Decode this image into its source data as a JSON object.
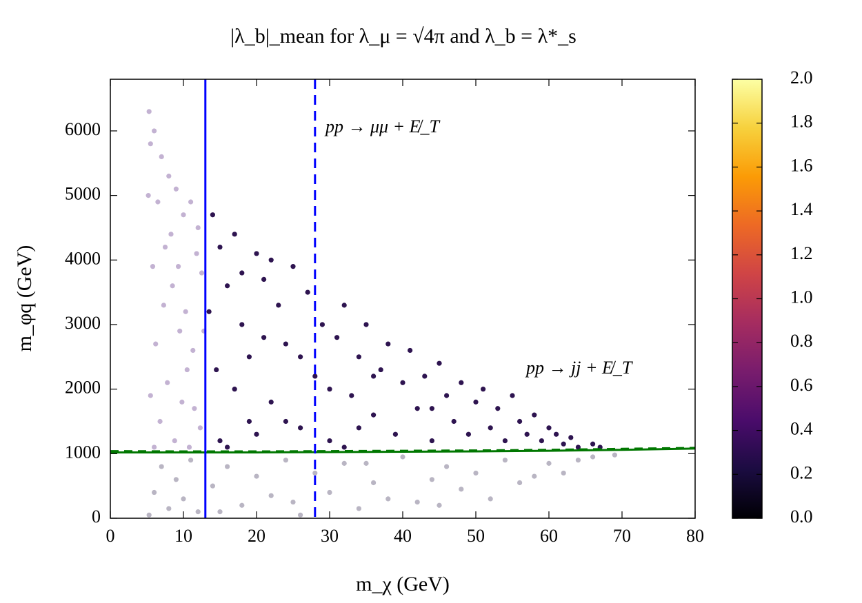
{
  "chart_data": {
    "type": "scatter",
    "title": "|λ_b|_mean for λ_μ = √4π and λ_b = λ*_s",
    "x_label": "m_χ (GeV)",
    "y_label": "m_φq (GeV)",
    "xlim": [
      0,
      80
    ],
    "xticks": [
      0,
      10,
      20,
      30,
      40,
      50,
      60,
      70,
      80
    ],
    "ylim": [
      0,
      6800
    ],
    "yticks": [
      0,
      1000,
      2000,
      3000,
      4000,
      5000,
      6000
    ],
    "colormap": "inferno",
    "clim": [
      0,
      2
    ],
    "cticks": [
      {
        "value": 0,
        "label": "0.0"
      },
      0.2,
      0.4,
      0.6,
      0.8,
      {
        "value": 1,
        "label": "1.0"
      },
      1.2,
      1.4,
      1.6,
      1.8,
      {
        "value": 2,
        "label": "2.0"
      }
    ],
    "series": [
      {
        "color": "#2e1450",
        "x": [
          14,
          15,
          16,
          17,
          18,
          19,
          20,
          21,
          22,
          23,
          24,
          25,
          26,
          27,
          28,
          29,
          30,
          31,
          32,
          33,
          34,
          35,
          36,
          37,
          38,
          39,
          40,
          41,
          42,
          43,
          44,
          45,
          46,
          47,
          48,
          49,
          50,
          51,
          52,
          53,
          54,
          55,
          56,
          57,
          58,
          59,
          60,
          61,
          62,
          63,
          64,
          66,
          67,
          15,
          17,
          19,
          21,
          13.5,
          14.5,
          16,
          18,
          20,
          22,
          24,
          26,
          30,
          34,
          36,
          44,
          32
        ],
        "values": [
          4700,
          4200,
          3600,
          4400,
          3000,
          2500,
          4100,
          3700,
          1800,
          3300,
          2700,
          3900,
          1400,
          3500,
          2200,
          3000,
          1200,
          2800,
          3300,
          1900,
          2500,
          3000,
          1600,
          2300,
          2700,
          1300,
          2100,
          2600,
          1700,
          2200,
          1200,
          2400,
          1900,
          1500,
          2100,
          1300,
          1800,
          2000,
          1400,
          1700,
          1200,
          1900,
          1500,
          1300,
          1600,
          1200,
          1400,
          1300,
          1150,
          1250,
          1100,
          1150,
          1100,
          1200,
          2000,
          1500,
          2800,
          3200,
          2300,
          1100,
          3800,
          1300,
          4000,
          1500,
          2500,
          2000,
          1400,
          2200,
          1700,
          1100
        ]
      },
      {
        "color": "#c3b2d2",
        "x": [
          5.3,
          5.5,
          6,
          6.5,
          7,
          7.5,
          8,
          8.5,
          9,
          9.5,
          10,
          10.5,
          11,
          11.5,
          12,
          12.5,
          5.2,
          5.8,
          6.2,
          6.8,
          7.3,
          7.8,
          8.3,
          8.8,
          9.3,
          9.8,
          10.3,
          10.8,
          11.3,
          11.8,
          12.3,
          12.8,
          5.5,
          6
        ],
        "values": [
          6300,
          5800,
          6000,
          4900,
          5600,
          4200,
          5300,
          3600,
          5100,
          2900,
          4700,
          2300,
          4900,
          1700,
          4500,
          3800,
          5000,
          3900,
          2700,
          1500,
          3300,
          2100,
          4400,
          1200,
          3900,
          1800,
          3200,
          1100,
          2600,
          4100,
          1400,
          2900,
          1900,
          1100
        ]
      },
      {
        "color": "#b9b5c3",
        "x": [
          5.3,
          6,
          7,
          8,
          9,
          10,
          11,
          12,
          14,
          16,
          18,
          20,
          22,
          24,
          26,
          28,
          30,
          32,
          34,
          36,
          38,
          40,
          42,
          44,
          46,
          48,
          50,
          52,
          54,
          56,
          58,
          60,
          62,
          64,
          66,
          69,
          15,
          25,
          35,
          45
        ],
        "values": [
          50,
          400,
          800,
          150,
          600,
          300,
          900,
          100,
          500,
          800,
          200,
          650,
          350,
          900,
          50,
          700,
          400,
          850,
          150,
          550,
          300,
          950,
          250,
          600,
          800,
          450,
          700,
          300,
          900,
          550,
          650,
          850,
          700,
          900,
          950,
          980,
          100,
          250,
          850,
          200
        ]
      }
    ],
    "vlines": [
      {
        "x": 13,
        "color": "#0000ff",
        "style": "solid"
      },
      {
        "x": 28,
        "color": "#0000ff",
        "style": "dashed"
      }
    ],
    "curves": [
      {
        "color": "#007700",
        "style": "solid",
        "x": [
          0,
          10,
          20,
          30,
          40,
          50,
          60,
          70,
          80
        ],
        "values": [
          1020,
          1020,
          1020,
          1025,
          1030,
          1035,
          1045,
          1060,
          1080
        ]
      },
      {
        "color": "#007700",
        "style": "dashed",
        "x": [
          0,
          10,
          20,
          30,
          40,
          50,
          60,
          70,
          80
        ],
        "values": [
          1040,
          1035,
          1035,
          1040,
          1045,
          1050,
          1060,
          1075,
          1090
        ]
      }
    ],
    "annotations": [
      {
        "text": "pp → μμ + E̸_T",
        "color": "#0000ff"
      },
      {
        "text": "pp → jj + E̸_T",
        "color": "#007700"
      }
    ]
  }
}
